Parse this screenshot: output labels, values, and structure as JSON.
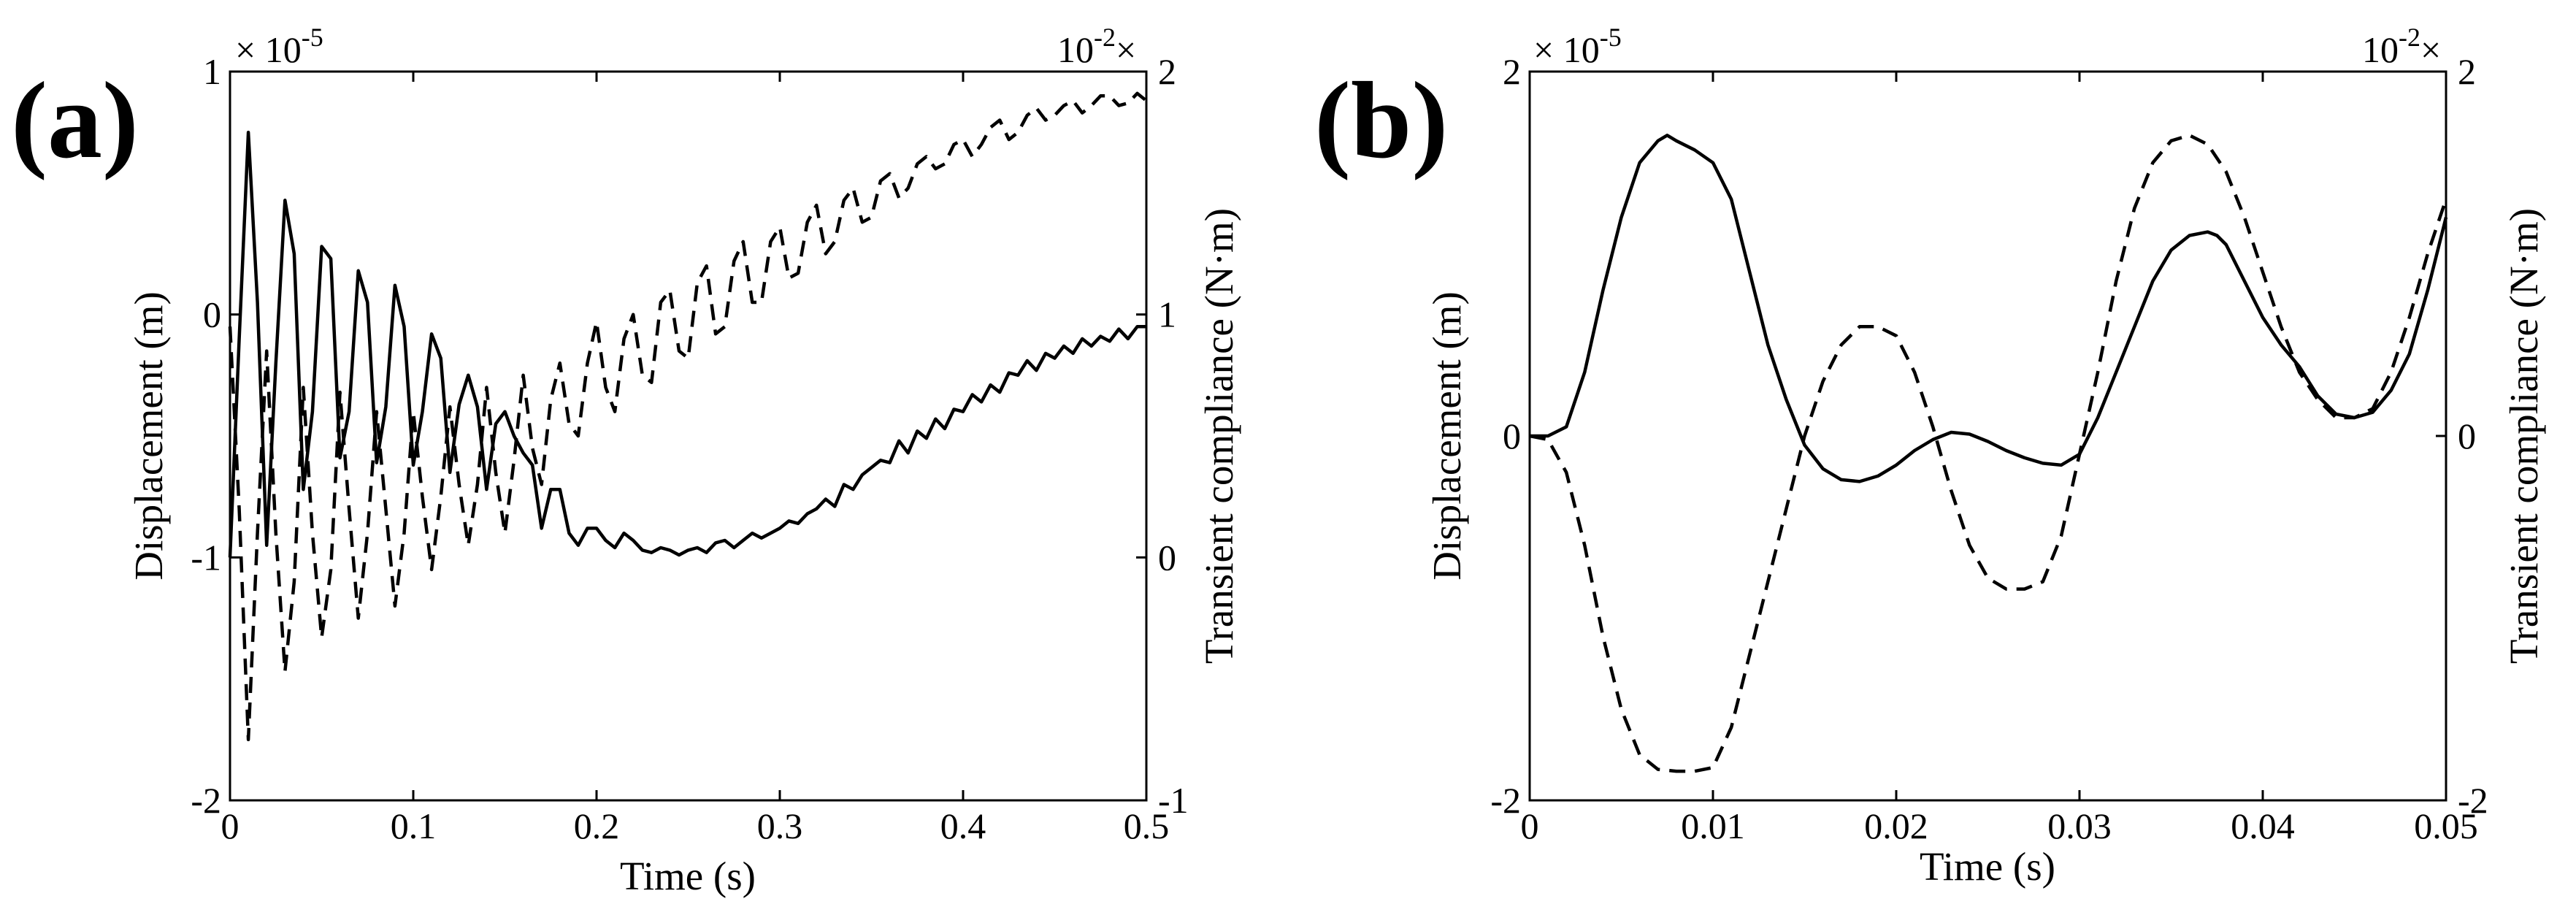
{
  "chart_data": [
    {
      "type": "line",
      "panel_label": "(a)",
      "title": "",
      "xlabel": "Time (s)",
      "ylabel_left": "Displacement (m)",
      "ylabel_right": "Transient compliance (N·m)",
      "left_exponent": "× 10",
      "left_exponent_power": "-5",
      "right_exponent": "10",
      "right_exponent_power": "-2",
      "right_exponent_mark": "×",
      "xlim": [
        0,
        0.5
      ],
      "ylim_left": [
        -2,
        1
      ],
      "ylim_right": [
        -1,
        2
      ],
      "xticks": [
        "0",
        "0.1",
        "0.2",
        "0.3",
        "0.4",
        "0.5"
      ],
      "xtick_values": [
        0,
        0.1,
        0.2,
        0.3,
        0.4,
        0.5
      ],
      "yticks_left": [
        "-2",
        "-1",
        "0",
        "1"
      ],
      "yticks_left_values": [
        -2,
        -1,
        0,
        1
      ],
      "yticks_right": [
        "-1",
        "0",
        "1",
        "2"
      ],
      "yticks_right_values": [
        -1,
        0,
        1,
        2
      ],
      "series": [
        {
          "name": "displacement",
          "axis": "left",
          "style": "solid",
          "x": [
            0,
            0.005,
            0.01,
            0.015,
            0.02,
            0.025,
            0.03,
            0.035,
            0.04,
            0.045,
            0.05,
            0.055,
            0.06,
            0.065,
            0.07,
            0.075,
            0.08,
            0.085,
            0.09,
            0.095,
            0.1,
            0.105,
            0.11,
            0.115,
            0.12,
            0.125,
            0.13,
            0.135,
            0.14,
            0.145,
            0.15,
            0.155,
            0.16,
            0.165,
            0.17,
            0.175,
            0.18,
            0.185,
            0.19,
            0.195,
            0.2,
            0.205,
            0.21,
            0.215,
            0.22,
            0.225,
            0.23,
            0.235,
            0.24,
            0.245,
            0.25,
            0.255,
            0.26,
            0.265,
            0.27,
            0.275,
            0.28,
            0.285,
            0.29,
            0.295,
            0.3,
            0.305,
            0.31,
            0.315,
            0.32,
            0.325,
            0.33,
            0.335,
            0.34,
            0.345,
            0.35,
            0.355,
            0.36,
            0.365,
            0.37,
            0.375,
            0.38,
            0.385,
            0.39,
            0.395,
            0.4,
            0.405,
            0.41,
            0.415,
            0.42,
            0.425,
            0.43,
            0.435,
            0.44,
            0.445,
            0.45,
            0.455,
            0.46,
            0.465,
            0.47,
            0.475,
            0.48,
            0.485,
            0.49,
            0.495,
            0.5
          ],
          "values": [
            -1.0,
            -0.1,
            0.75,
            0.05,
            -0.95,
            -0.2,
            0.47,
            0.25,
            -0.72,
            -0.4,
            0.28,
            0.23,
            -0.59,
            -0.4,
            0.18,
            0.05,
            -0.61,
            -0.38,
            0.12,
            -0.05,
            -0.62,
            -0.4,
            -0.08,
            -0.18,
            -0.65,
            -0.37,
            -0.25,
            -0.38,
            -0.72,
            -0.45,
            -0.4,
            -0.5,
            -0.57,
            -0.62,
            -0.88,
            -0.72,
            -0.72,
            -0.9,
            -0.95,
            -0.88,
            -0.88,
            -0.93,
            -0.96,
            -0.9,
            -0.93,
            -0.97,
            -0.98,
            -0.96,
            -0.97,
            -0.99,
            -0.97,
            -0.96,
            -0.98,
            -0.94,
            -0.93,
            -0.96,
            -0.93,
            -0.9,
            -0.92,
            -0.9,
            -0.88,
            -0.85,
            -0.86,
            -0.82,
            -0.8,
            -0.76,
            -0.79,
            -0.7,
            -0.72,
            -0.66,
            -0.63,
            -0.6,
            -0.61,
            -0.52,
            -0.57,
            -0.48,
            -0.51,
            -0.43,
            -0.47,
            -0.39,
            -0.4,
            -0.33,
            -0.36,
            -0.29,
            -0.32,
            -0.24,
            -0.25,
            -0.19,
            -0.23,
            -0.16,
            -0.18,
            -0.13,
            -0.16,
            -0.1,
            -0.13,
            -0.09,
            -0.11,
            -0.06,
            -0.1,
            -0.05,
            -0.05
          ]
        },
        {
          "name": "transient compliance",
          "axis": "right",
          "style": "dashed",
          "x": [
            0,
            0.005,
            0.01,
            0.015,
            0.02,
            0.025,
            0.03,
            0.035,
            0.04,
            0.045,
            0.05,
            0.055,
            0.06,
            0.065,
            0.07,
            0.075,
            0.08,
            0.085,
            0.09,
            0.095,
            0.1,
            0.105,
            0.11,
            0.115,
            0.12,
            0.125,
            0.13,
            0.135,
            0.14,
            0.145,
            0.15,
            0.155,
            0.16,
            0.165,
            0.17,
            0.175,
            0.18,
            0.185,
            0.19,
            0.195,
            0.2,
            0.205,
            0.21,
            0.215,
            0.22,
            0.225,
            0.23,
            0.235,
            0.24,
            0.245,
            0.25,
            0.255,
            0.26,
            0.265,
            0.27,
            0.275,
            0.28,
            0.285,
            0.29,
            0.295,
            0.3,
            0.305,
            0.31,
            0.315,
            0.32,
            0.325,
            0.33,
            0.335,
            0.34,
            0.345,
            0.35,
            0.355,
            0.36,
            0.365,
            0.37,
            0.375,
            0.38,
            0.385,
            0.39,
            0.395,
            0.4,
            0.405,
            0.41,
            0.415,
            0.42,
            0.425,
            0.43,
            0.435,
            0.44,
            0.445,
            0.45,
            0.455,
            0.46,
            0.465,
            0.47,
            0.475,
            0.48,
            0.485,
            0.49,
            0.495,
            0.5
          ],
          "values": [
            0.95,
            0.2,
            -0.75,
            0.1,
            0.85,
            0.1,
            -0.47,
            -0.1,
            0.7,
            0.1,
            -0.33,
            -0.05,
            0.68,
            0.2,
            -0.25,
            0.1,
            0.6,
            0.2,
            -0.2,
            0.1,
            0.6,
            0.25,
            -0.05,
            0.25,
            0.62,
            0.3,
            0.05,
            0.3,
            0.7,
            0.35,
            0.1,
            0.4,
            0.75,
            0.45,
            0.3,
            0.65,
            0.8,
            0.55,
            0.5,
            0.8,
            0.97,
            0.7,
            0.6,
            0.9,
            1.0,
            0.75,
            0.72,
            1.05,
            1.1,
            0.85,
            0.82,
            1.13,
            1.2,
            0.92,
            0.95,
            1.22,
            1.3,
            1.05,
            1.05,
            1.3,
            1.36,
            1.15,
            1.17,
            1.38,
            1.45,
            1.25,
            1.3,
            1.47,
            1.52,
            1.38,
            1.4,
            1.55,
            1.58,
            1.48,
            1.52,
            1.62,
            1.65,
            1.6,
            1.62,
            1.7,
            1.72,
            1.65,
            1.7,
            1.77,
            1.8,
            1.72,
            1.75,
            1.82,
            1.85,
            1.8,
            1.82,
            1.86,
            1.88,
            1.83,
            1.86,
            1.9,
            1.9,
            1.86,
            1.87,
            1.91,
            1.88
          ]
        }
      ]
    },
    {
      "type": "line",
      "panel_label": "(b)",
      "title": "",
      "xlabel": "Time (s)",
      "ylabel_left": "Displacement (m)",
      "ylabel_right": "Transient compliance (N·m)",
      "left_exponent": "× 10",
      "left_exponent_power": "-5",
      "right_exponent": "10",
      "right_exponent_power": "-2",
      "right_exponent_mark": "×",
      "xlim": [
        0,
        0.05
      ],
      "ylim_left": [
        -2,
        2
      ],
      "ylim_right": [
        -2,
        2
      ],
      "xticks": [
        "0",
        "0.01",
        "0.02",
        "0.03",
        "0.04",
        "0.05"
      ],
      "xtick_values": [
        0,
        0.01,
        0.02,
        0.03,
        0.04,
        0.05
      ],
      "yticks_left": [
        "-2",
        "0",
        "2"
      ],
      "yticks_left_values": [
        -2,
        0,
        2
      ],
      "yticks_right": [
        "-2",
        "0",
        "2"
      ],
      "yticks_right_values": [
        -2,
        0,
        2
      ],
      "series": [
        {
          "name": "displacement",
          "axis": "left",
          "style": "solid",
          "x": [
            0,
            0.001,
            0.002,
            0.003,
            0.004,
            0.005,
            0.006,
            0.007,
            0.0075,
            0.008,
            0.009,
            0.01,
            0.011,
            0.012,
            0.013,
            0.014,
            0.015,
            0.016,
            0.017,
            0.018,
            0.019,
            0.02,
            0.021,
            0.022,
            0.023,
            0.024,
            0.025,
            0.026,
            0.027,
            0.028,
            0.029,
            0.03,
            0.031,
            0.032,
            0.033,
            0.034,
            0.035,
            0.036,
            0.037,
            0.0375,
            0.038,
            0.039,
            0.04,
            0.041,
            0.042,
            0.043,
            0.044,
            0.045,
            0.046,
            0.047,
            0.048,
            0.049,
            0.05
          ],
          "values": [
            0,
            0,
            0.05,
            0.35,
            0.8,
            1.2,
            1.5,
            1.62,
            1.65,
            1.62,
            1.57,
            1.5,
            1.3,
            0.9,
            0.5,
            0.2,
            -0.05,
            -0.18,
            -0.24,
            -0.25,
            -0.22,
            -0.16,
            -0.08,
            -0.02,
            0.02,
            0.01,
            -0.03,
            -0.08,
            -0.12,
            -0.15,
            -0.16,
            -0.1,
            0.1,
            0.35,
            0.6,
            0.85,
            1.02,
            1.1,
            1.12,
            1.1,
            1.05,
            0.85,
            0.65,
            0.5,
            0.38,
            0.22,
            0.12,
            0.1,
            0.13,
            0.25,
            0.45,
            0.8,
            1.2
          ]
        },
        {
          "name": "transient compliance",
          "axis": "right",
          "style": "dashed",
          "x": [
            0,
            0.001,
            0.002,
            0.003,
            0.004,
            0.005,
            0.006,
            0.007,
            0.008,
            0.009,
            0.01,
            0.011,
            0.012,
            0.013,
            0.014,
            0.015,
            0.016,
            0.017,
            0.018,
            0.019,
            0.02,
            0.021,
            0.022,
            0.023,
            0.024,
            0.025,
            0.026,
            0.027,
            0.028,
            0.029,
            0.03,
            0.031,
            0.032,
            0.033,
            0.034,
            0.035,
            0.036,
            0.037,
            0.038,
            0.039,
            0.04,
            0.041,
            0.042,
            0.043,
            0.044,
            0.045,
            0.046,
            0.047,
            0.048,
            0.049,
            0.05
          ],
          "values": [
            0,
            -0.02,
            -0.2,
            -0.6,
            -1.1,
            -1.5,
            -1.75,
            -1.83,
            -1.84,
            -1.84,
            -1.82,
            -1.6,
            -1.2,
            -0.8,
            -0.4,
            0.0,
            0.3,
            0.5,
            0.6,
            0.6,
            0.55,
            0.35,
            0.05,
            -0.3,
            -0.6,
            -0.78,
            -0.84,
            -0.84,
            -0.8,
            -0.55,
            -0.1,
            0.35,
            0.85,
            1.25,
            1.5,
            1.62,
            1.65,
            1.6,
            1.45,
            1.2,
            0.9,
            0.6,
            0.35,
            0.2,
            0.1,
            0.1,
            0.15,
            0.35,
            0.65,
            1.0,
            1.3
          ]
        }
      ]
    }
  ]
}
